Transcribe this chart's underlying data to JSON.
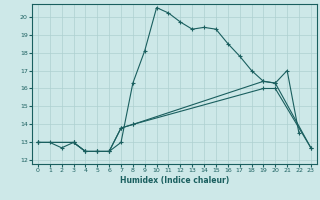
{
  "xlabel": "Humidex (Indice chaleur)",
  "background_color": "#cde8e8",
  "grid_color": "#aed0d0",
  "line_color": "#1a5f5f",
  "xlim": [
    -0.5,
    23.5
  ],
  "ylim": [
    11.8,
    20.7
  ],
  "yticks": [
    12,
    13,
    14,
    15,
    16,
    17,
    18,
    19,
    20
  ],
  "xticks": [
    0,
    1,
    2,
    3,
    4,
    5,
    6,
    7,
    8,
    9,
    10,
    11,
    12,
    13,
    14,
    15,
    16,
    17,
    18,
    19,
    20,
    21,
    22,
    23
  ],
  "series": [
    {
      "x": [
        0,
        1,
        2,
        3,
        4,
        5,
        6,
        7,
        8,
        9,
        10,
        11,
        12,
        13,
        14,
        15,
        16,
        17,
        18,
        19,
        20,
        21,
        22
      ],
      "y": [
        13.0,
        13.0,
        12.7,
        13.0,
        12.5,
        12.5,
        12.5,
        13.0,
        16.3,
        18.1,
        20.5,
        20.2,
        19.7,
        19.3,
        19.4,
        19.3,
        18.5,
        17.8,
        17.0,
        16.4,
        16.3,
        17.0,
        13.5
      ]
    },
    {
      "x": [
        0,
        3,
        4,
        5,
        6,
        7,
        8,
        19,
        20,
        23
      ],
      "y": [
        13.0,
        13.0,
        12.5,
        12.5,
        12.5,
        13.8,
        14.0,
        16.4,
        16.3,
        12.7
      ]
    },
    {
      "x": [
        0,
        3,
        4,
        5,
        6,
        7,
        8,
        19,
        20,
        23
      ],
      "y": [
        13.0,
        13.0,
        12.5,
        12.5,
        12.5,
        13.8,
        14.0,
        16.0,
        16.0,
        12.7
      ]
    }
  ]
}
